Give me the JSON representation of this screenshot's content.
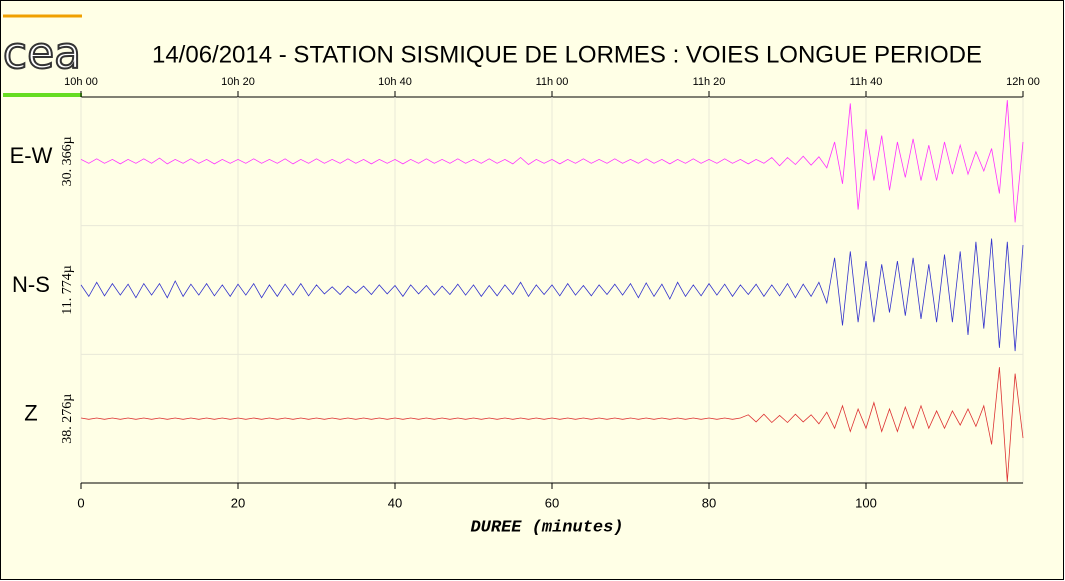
{
  "logo": "cea",
  "chart_data": {
    "type": "line",
    "title": "14/06/2014  -  STATION SISMIQUE DE LORMES : VOIES LONGUE PERIODE",
    "x_label": "DUREE (minutes)",
    "xlim": [
      0,
      120
    ],
    "xticks": [
      0,
      20,
      40,
      60,
      80,
      100
    ],
    "top_xticks": [
      {
        "value": 0,
        "label": "10h 00"
      },
      {
        "value": 20,
        "label": "10h 20"
      },
      {
        "value": 40,
        "label": "10h 40"
      },
      {
        "value": 60,
        "label": "11h 00"
      },
      {
        "value": 80,
        "label": "11h 20"
      },
      {
        "value": 100,
        "label": "11h 40"
      },
      {
        "value": 120,
        "label": "12h 00"
      }
    ],
    "ylim": [
      -1,
      1
    ],
    "grid": true,
    "x": [
      0,
      1,
      2,
      3,
      4,
      5,
      6,
      7,
      8,
      9,
      10,
      11,
      12,
      13,
      14,
      15,
      16,
      17,
      18,
      19,
      20,
      21,
      22,
      23,
      24,
      25,
      26,
      27,
      28,
      29,
      30,
      31,
      32,
      33,
      34,
      35,
      36,
      37,
      38,
      39,
      40,
      41,
      42,
      43,
      44,
      45,
      46,
      47,
      48,
      49,
      50,
      51,
      52,
      53,
      54,
      55,
      56,
      57,
      58,
      59,
      60,
      61,
      62,
      63,
      64,
      65,
      66,
      67,
      68,
      69,
      70,
      71,
      72,
      73,
      74,
      75,
      76,
      77,
      78,
      79,
      80,
      81,
      82,
      83,
      84,
      85,
      86,
      87,
      88,
      89,
      90,
      91,
      92,
      93,
      94,
      95,
      96,
      97,
      98,
      99,
      100,
      101,
      102,
      103,
      104,
      105,
      106,
      107,
      108,
      109,
      110,
      111,
      112,
      113,
      114,
      115,
      116,
      117,
      118,
      119,
      120
    ],
    "series": [
      {
        "name": "E-W",
        "scale": "30. 366µ",
        "color": "#ff33ff",
        "values": [
          0.03,
          -0.03,
          0.04,
          -0.03,
          0.03,
          -0.04,
          0.03,
          -0.03,
          0.04,
          -0.03,
          0.05,
          -0.04,
          0.03,
          -0.03,
          0.04,
          -0.03,
          0.03,
          -0.04,
          0.03,
          -0.03,
          0.03,
          -0.03,
          0.04,
          -0.03,
          0.03,
          -0.03,
          0.04,
          -0.04,
          0.03,
          -0.03,
          0.04,
          -0.03,
          0.03,
          -0.03,
          0.04,
          -0.03,
          0.03,
          -0.04,
          0.03,
          -0.03,
          0.03,
          -0.04,
          0.03,
          -0.03,
          0.04,
          -0.03,
          0.03,
          -0.03,
          0.04,
          -0.03,
          0.03,
          -0.03,
          0.04,
          -0.03,
          0.03,
          -0.04,
          0.06,
          -0.05,
          0.03,
          -0.03,
          0.03,
          -0.04,
          0.03,
          -0.03,
          0.04,
          -0.03,
          0.03,
          -0.03,
          0.04,
          -0.03,
          0.03,
          -0.03,
          0.04,
          -0.03,
          0.03,
          -0.04,
          0.03,
          -0.03,
          0.04,
          -0.03,
          0.03,
          -0.03,
          0.04,
          -0.03,
          0.03,
          -0.04,
          0.03,
          -0.03,
          0.06,
          -0.07,
          0.06,
          -0.05,
          0.08,
          -0.06,
          0.07,
          -0.1,
          0.3,
          -0.35,
          0.9,
          -0.75,
          0.5,
          -0.3,
          0.4,
          -0.45,
          0.3,
          -0.25,
          0.35,
          -0.3,
          0.25,
          -0.3,
          0.3,
          -0.2,
          0.25,
          -0.2,
          0.15,
          -0.15,
          0.2,
          -0.5,
          0.95,
          -0.95,
          0.3
        ]
      },
      {
        "name": "N-S",
        "scale": "11. 774µ",
        "color": "#3333cc",
        "values": [
          0.08,
          -0.1,
          0.12,
          -0.09,
          0.1,
          -0.08,
          0.09,
          -0.12,
          0.1,
          -0.08,
          0.1,
          -0.12,
          0.14,
          -0.1,
          0.09,
          -0.08,
          0.1,
          -0.09,
          0.08,
          -0.1,
          0.09,
          -0.08,
          0.1,
          -0.12,
          0.08,
          -0.1,
          0.09,
          -0.08,
          0.1,
          -0.09,
          0.08,
          -0.06,
          0.05,
          -0.07,
          0.06,
          -0.05,
          0.06,
          -0.07,
          0.08,
          -0.06,
          0.07,
          -0.1,
          0.08,
          -0.06,
          0.07,
          -0.08,
          0.06,
          -0.07,
          0.09,
          -0.08,
          0.08,
          -0.1,
          0.07,
          -0.09,
          0.08,
          -0.07,
          0.12,
          -0.1,
          0.08,
          -0.07,
          0.08,
          -0.09,
          0.1,
          -0.08,
          0.07,
          -0.09,
          0.08,
          -0.07,
          0.09,
          -0.08,
          0.1,
          -0.12,
          0.11,
          -0.1,
          0.09,
          -0.14,
          0.12,
          -0.1,
          0.08,
          -0.09,
          0.1,
          -0.08,
          0.09,
          -0.1,
          0.08,
          -0.07,
          0.09,
          -0.1,
          0.08,
          -0.09,
          0.1,
          -0.12,
          0.09,
          -0.1,
          0.12,
          -0.2,
          0.5,
          -0.55,
          0.6,
          -0.5,
          0.45,
          -0.5,
          0.4,
          -0.35,
          0.45,
          -0.4,
          0.5,
          -0.45,
          0.4,
          -0.5,
          0.55,
          -0.5,
          0.6,
          -0.7,
          0.75,
          -0.6,
          0.8,
          -0.9,
          0.75,
          -0.95,
          0.7
        ]
      },
      {
        "name": "Z",
        "scale": "38. 276µ",
        "color": "#dd3333",
        "values": [
          0.01,
          -0.01,
          0.01,
          -0.01,
          0.01,
          -0.01,
          0.01,
          -0.01,
          0.01,
          -0.01,
          0.01,
          -0.01,
          0.01,
          -0.01,
          0.01,
          -0.01,
          0.01,
          -0.01,
          0.01,
          -0.01,
          0.01,
          -0.01,
          0.01,
          -0.01,
          0.01,
          -0.01,
          0.01,
          -0.01,
          0.01,
          -0.01,
          0.01,
          -0.01,
          0.01,
          -0.01,
          0.01,
          -0.01,
          0.01,
          -0.01,
          0.01,
          -0.01,
          0.01,
          -0.01,
          0.01,
          -0.01,
          0.01,
          -0.01,
          0.01,
          -0.01,
          0.01,
          -0.01,
          0.01,
          -0.01,
          0.01,
          -0.01,
          0.01,
          -0.01,
          0.01,
          -0.01,
          0.01,
          -0.01,
          0.01,
          -0.01,
          0.01,
          -0.01,
          0.01,
          -0.01,
          0.01,
          -0.01,
          0.01,
          -0.01,
          0.01,
          -0.01,
          0.01,
          -0.01,
          0.01,
          -0.01,
          0.01,
          -0.01,
          0.01,
          -0.01,
          0.01,
          -0.01,
          0.01,
          -0.01,
          0.01,
          0.06,
          -0.05,
          0.07,
          -0.06,
          0.05,
          -0.06,
          0.07,
          -0.05,
          0.06,
          -0.08,
          0.1,
          -0.15,
          0.2,
          -0.2,
          0.15,
          -0.15,
          0.25,
          -0.2,
          0.15,
          -0.2,
          0.18,
          -0.15,
          0.2,
          -0.15,
          0.12,
          -0.15,
          0.12,
          -0.1,
          0.15,
          -0.12,
          0.2,
          -0.4,
          0.8,
          -0.98,
          0.7,
          -0.3
        ]
      }
    ]
  }
}
